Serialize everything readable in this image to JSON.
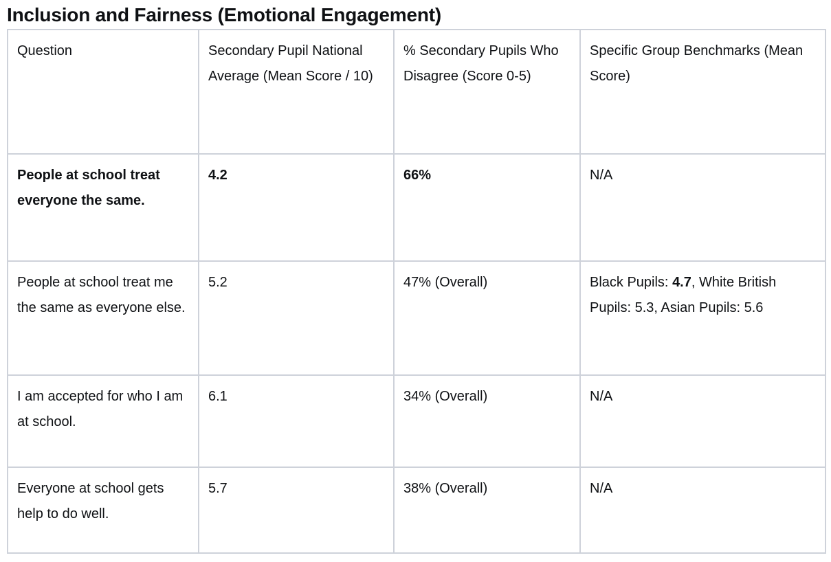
{
  "title": "Inclusion and Fairness (Emotional Engagement)",
  "colors": {
    "table_border": "#ced2da",
    "text": "#0f1114",
    "background": "#ffffff"
  },
  "table": {
    "columns": [
      "Question",
      "Secondary Pupil National Average (Mean Score / 10)",
      "% Secondary Pupils Who Disagree (Score 0-5)",
      "Specific Group Benchmarks (Mean Score)"
    ],
    "rows": [
      {
        "cells": [
          [
            {
              "text": "People at school treat everyone the same.",
              "bold": true
            }
          ],
          [
            {
              "text": "4.2",
              "bold": true
            }
          ],
          [
            {
              "text": "66%",
              "bold": true
            }
          ],
          [
            {
              "text": "N/A",
              "bold": false
            }
          ]
        ]
      },
      {
        "cells": [
          [
            {
              "text": "People at school treat me the same as everyone else.",
              "bold": false
            }
          ],
          [
            {
              "text": "5.2",
              "bold": false
            }
          ],
          [
            {
              "text": "47% (Overall)",
              "bold": false
            }
          ],
          [
            {
              "text": "Black Pupils: ",
              "bold": false
            },
            {
              "text": "4.7",
              "bold": true
            },
            {
              "text": ", White British Pupils: 5.3, Asian Pupils: 5.6",
              "bold": false
            }
          ]
        ]
      },
      {
        "cells": [
          [
            {
              "text": "I am accepted for who I am at school.",
              "bold": false
            }
          ],
          [
            {
              "text": "6.1",
              "bold": false
            }
          ],
          [
            {
              "text": "34% (Overall)",
              "bold": false
            }
          ],
          [
            {
              "text": "N/A",
              "bold": false
            }
          ]
        ]
      },
      {
        "cells": [
          [
            {
              "text": "Everyone at school gets help to do well.",
              "bold": false
            }
          ],
          [
            {
              "text": "5.7",
              "bold": false
            }
          ],
          [
            {
              "text": "38% (Overall)",
              "bold": false
            }
          ],
          [
            {
              "text": "N/A",
              "bold": false
            }
          ]
        ]
      }
    ]
  }
}
